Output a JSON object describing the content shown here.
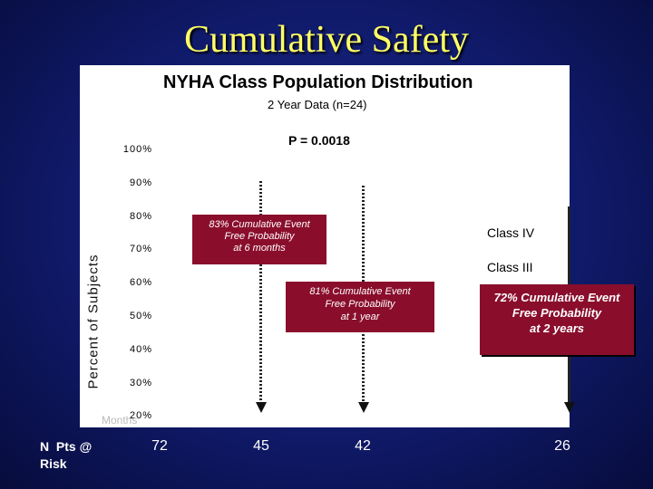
{
  "slide_title": "Cumulative Safety",
  "npts_label": "N Pts @ Risk",
  "months_label": "Months",
  "chart_data": {
    "type": "bar",
    "title": "NYHA Class Population Distribution",
    "subtitle": "2 Year Data (n=24)",
    "annotation": "P = 0.0018",
    "ylabel": "Percent of Subjects",
    "xlabel": "Months",
    "y_ticks": [
      "100%",
      "90%",
      "80%",
      "70%",
      "60%",
      "50%",
      "40%",
      "30%",
      "20%"
    ],
    "ylim": [
      20,
      100
    ],
    "legend": [
      "Class IV",
      "Class III"
    ],
    "timepoints": [
      {
        "at_risk": "72",
        "line": "none"
      },
      {
        "at_risk": "45",
        "line": "dotted"
      },
      {
        "at_risk": "42",
        "line": "dotted"
      },
      {
        "at_risk": "26",
        "line": "solid"
      }
    ],
    "callouts": [
      {
        "lines": [
          "83% Cumulative Event",
          "Free Probability",
          "at 6 months"
        ]
      },
      {
        "lines": [
          "81% Cumulative Event",
          "Free Probability",
          "at 1 year"
        ]
      },
      {
        "lines": [
          "72% Cumulative Event",
          "Free Probability",
          "at 2 years"
        ]
      }
    ]
  }
}
